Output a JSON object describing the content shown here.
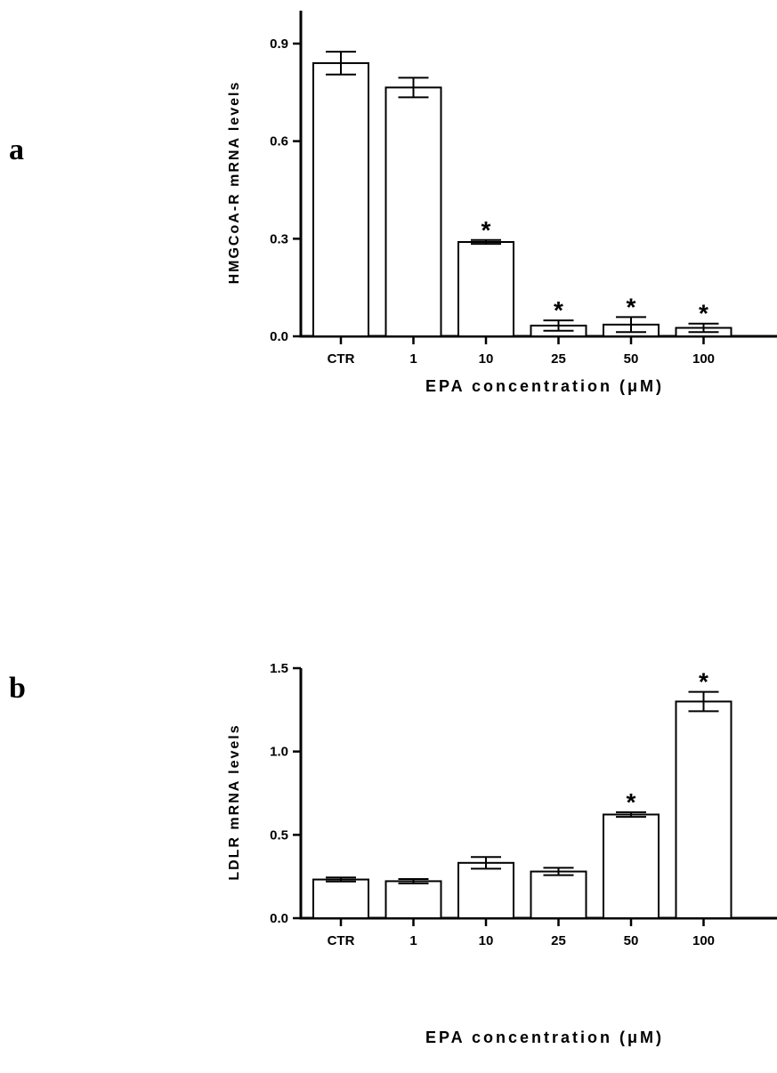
{
  "chart_data": [
    {
      "panel": "a",
      "type": "bar",
      "categories": [
        "CTR",
        "1",
        "10",
        "25",
        "50",
        "100"
      ],
      "values": [
        0.84,
        0.765,
        0.29,
        0.033,
        0.036,
        0.026
      ],
      "errors": [
        0.035,
        0.03,
        0.006,
        0.016,
        0.023,
        0.013
      ],
      "significant": [
        false,
        false,
        true,
        true,
        true,
        true
      ],
      "significance_marker": "*",
      "ylabel": "HMGCoA-R mRNA levels",
      "xlabel": "EPA concentration (μM)",
      "ylim": [
        0,
        0.9
      ],
      "yticks": [
        "0.0",
        "0.3",
        "0.6",
        "0.9"
      ],
      "ytick_values": [
        0,
        0.3,
        0.6,
        0.9
      ]
    },
    {
      "panel": "b",
      "type": "bar",
      "categories": [
        "CTR",
        "1",
        "10",
        "25",
        "50",
        "100"
      ],
      "values": [
        0.232,
        0.222,
        0.332,
        0.28,
        0.622,
        1.3
      ],
      "errors": [
        0.012,
        0.013,
        0.035,
        0.022,
        0.014,
        0.058
      ],
      "significant": [
        false,
        false,
        false,
        false,
        true,
        true
      ],
      "significance_marker": "*",
      "ylabel": "LDLR mRNA levels",
      "xlabel": "EPA concentration (μM)",
      "ylim": [
        0,
        1.5
      ],
      "yticks": [
        "0.0",
        "0.5",
        "1.0",
        "1.5"
      ],
      "ytick_values": [
        0,
        0.5,
        1.0,
        1.5
      ]
    }
  ]
}
